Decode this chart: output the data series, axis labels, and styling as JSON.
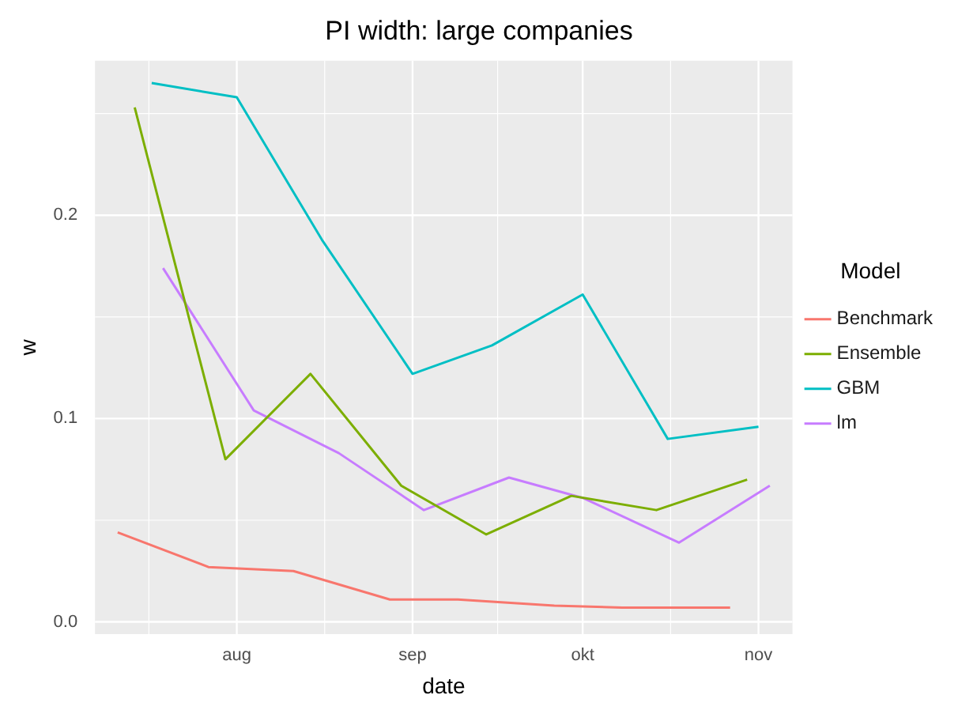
{
  "chart_data": {
    "type": "line",
    "title": "PI width: large companies",
    "xlabel": "date",
    "ylabel": "w",
    "legend_title": "Model",
    "legend": "right",
    "grid": true,
    "xlim": [
      "--07-07",
      "--11-07"
    ],
    "xticks": [
      {
        "value": "--08-01",
        "label": "aug"
      },
      {
        "value": "--09-01",
        "label": "sep"
      },
      {
        "value": "--10-01",
        "label": "okt"
      },
      {
        "value": "--11-01",
        "label": "nov"
      }
    ],
    "ylim": [
      -0.006,
      0.276
    ],
    "yticks": [
      {
        "value": 0,
        "label": "0.0"
      },
      0.1,
      0.2
    ],
    "series": [
      {
        "name": "Benchmark",
        "color": "#f8766d",
        "x": [
          "--07-11",
          "--07-27",
          "--08-11",
          "--08-28",
          "--09-09",
          "--09-26",
          "--10-08",
          "--10-27"
        ],
        "values": [
          0.044,
          0.027,
          0.025,
          0.011,
          0.011,
          0.008,
          0.007,
          0.007
        ]
      },
      {
        "name": "Ensemble",
        "color": "#7cae00",
        "x": [
          "--07-14",
          "--07-30",
          "--08-14",
          "--08-30",
          "--09-14",
          "--09-29",
          "--10-14",
          "--10-30"
        ],
        "values": [
          0.253,
          0.08,
          0.122,
          0.067,
          0.043,
          0.062,
          0.055,
          0.07
        ]
      },
      {
        "name": "GBM",
        "color": "#00bfc4",
        "x": [
          "--07-17",
          "--08-01",
          "--08-16",
          "--09-01",
          "--09-15",
          "--10-01",
          "--10-16",
          "--11-01"
        ],
        "values": [
          0.265,
          0.258,
          0.188,
          0.122,
          0.136,
          0.161,
          0.09,
          0.096
        ]
      },
      {
        "name": "lm",
        "color": "#c77cff",
        "x": [
          "--07-19",
          "--08-04",
          "--08-19",
          "--09-03",
          "--09-18",
          "--10-01",
          "--10-18",
          "--11-03"
        ],
        "values": [
          0.174,
          0.104,
          0.083,
          0.055,
          0.071,
          0.061,
          0.039,
          0.067
        ]
      }
    ]
  }
}
